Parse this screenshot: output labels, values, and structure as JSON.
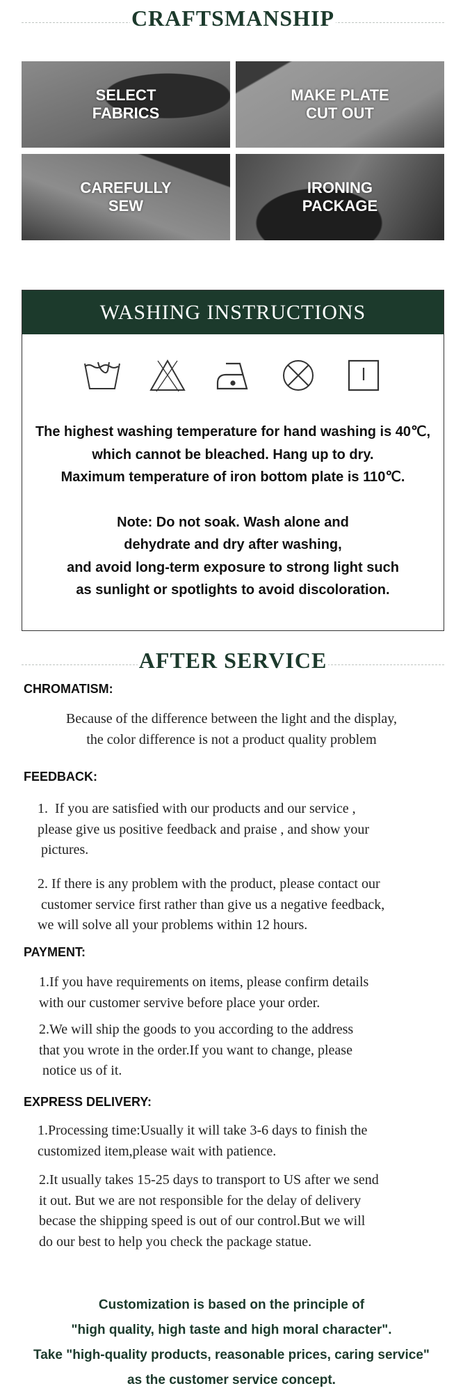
{
  "craftsmanship": {
    "title": "CRAFTSMANSHIP",
    "steps": [
      {
        "line1": "SELECT",
        "line2": "FABRICS"
      },
      {
        "line1": "MAKE PLATE",
        "line2": "CUT OUT"
      },
      {
        "line1": "CAREFULLY",
        "line2": "SEW"
      },
      {
        "line1": "IRONING",
        "line2": "PACKAGE"
      }
    ]
  },
  "washing": {
    "title": "WASHING INSTRUCTIONS",
    "icons": [
      "hand-wash-icon",
      "do-not-bleach-icon",
      "iron-low-temp-icon",
      "do-not-tumble-dry-icon",
      "line-dry-icon"
    ],
    "lines": [
      "The highest washing temperature for hand washing is 40℃,",
      "which cannot be bleached. Hang up to dry.",
      "Maximum temperature of iron bottom plate is 110℃."
    ],
    "note_lines": [
      "Note: Do not soak. Wash alone and",
      "dehydrate and dry after washing,",
      "and avoid long-term exposure to strong light such",
      "as sunlight or spotlights to avoid discoloration."
    ]
  },
  "after_service": {
    "title": "AFTER SERVICE",
    "chromatism": {
      "heading": "CHROMATISM:",
      "lines": [
        "Because of the difference between the light and the display,",
        "the color difference is not a product quality problem"
      ]
    },
    "feedback": {
      "heading": "FEEDBACK:",
      "item1": [
        "1.  If you are satisfied with our products and our service ,",
        "please give us positive feedback and praise , and show your",
        " pictures."
      ],
      "item2": [
        "2. If there is any problem with the product, please contact our",
        " customer service first rather than give us a negative feedback,",
        "we will solve all your problems within 12 hours."
      ]
    },
    "payment": {
      "heading": "PAYMENT:",
      "item1": [
        "1.If you have requirements on items, please confirm details",
        "with our customer servive before place your order."
      ],
      "item2": [
        "2.We will ship the goods to you according to the address",
        "that you wrote in the order.If you want to change, please",
        " notice us of it."
      ]
    },
    "express": {
      "heading": "EXPRESS DELIVERY:",
      "item1": [
        "1.Processing time:Usually it will take 3-6 days to finish the",
        "customized item,please wait with patience."
      ],
      "item2": [
        "2.It usually takes 15-25 days to transport to US after we send",
        "it out. But we are not responsible for the delay of delivery",
        "becase the shipping speed is out of our control.But we will",
        "do our best to help you check the package statue."
      ]
    }
  },
  "closing": [
    "Customization is based on the principle of",
    "\"high quality, high taste and high moral character\".",
    "Take \"high-quality products, reasonable prices, caring service\"",
    "as the customer service concept."
  ],
  "colors": {
    "brand_green": "#1c3a2c"
  }
}
